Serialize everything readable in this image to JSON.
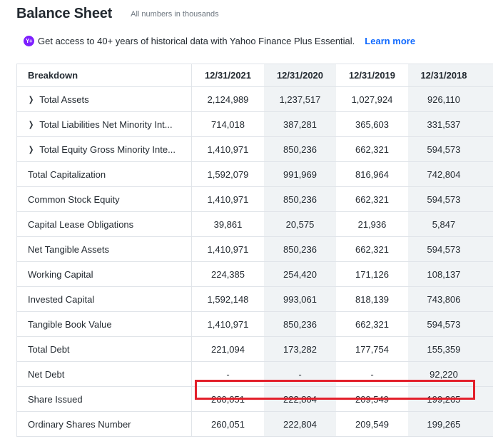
{
  "header": {
    "title": "Balance Sheet",
    "subtitle": "All numbers in thousands"
  },
  "promo": {
    "icon": "yahoo-plus-icon",
    "icon_text": "Y+",
    "text": "Get access to 40+ years of historical data with Yahoo Finance Plus Essential.",
    "link": "Learn more"
  },
  "table": {
    "columns": [
      "Breakdown",
      "12/31/2021",
      "12/31/2020",
      "12/31/2019",
      "12/31/2018"
    ],
    "rows": [
      {
        "label": "Total Assets",
        "expandable": true,
        "values": [
          "2,124,989",
          "1,237,517",
          "1,027,924",
          "926,110"
        ]
      },
      {
        "label": "Total Liabilities Net Minority Int...",
        "expandable": true,
        "values": [
          "714,018",
          "387,281",
          "365,603",
          "331,537"
        ]
      },
      {
        "label": "Total Equity Gross Minority Inte...",
        "expandable": true,
        "values": [
          "1,410,971",
          "850,236",
          "662,321",
          "594,573"
        ]
      },
      {
        "label": "Total Capitalization",
        "expandable": false,
        "values": [
          "1,592,079",
          "991,969",
          "816,964",
          "742,804"
        ]
      },
      {
        "label": "Common Stock Equity",
        "expandable": false,
        "values": [
          "1,410,971",
          "850,236",
          "662,321",
          "594,573"
        ]
      },
      {
        "label": "Capital Lease Obligations",
        "expandable": false,
        "values": [
          "39,861",
          "20,575",
          "21,936",
          "5,847"
        ]
      },
      {
        "label": "Net Tangible Assets",
        "expandable": false,
        "values": [
          "1,410,971",
          "850,236",
          "662,321",
          "594,573"
        ]
      },
      {
        "label": "Working Capital",
        "expandable": false,
        "values": [
          "224,385",
          "254,420",
          "171,126",
          "108,137"
        ]
      },
      {
        "label": "Invested Capital",
        "expandable": false,
        "values": [
          "1,592,148",
          "993,061",
          "818,139",
          "743,806"
        ]
      },
      {
        "label": "Tangible Book Value",
        "expandable": false,
        "values": [
          "1,410,971",
          "850,236",
          "662,321",
          "594,573"
        ]
      },
      {
        "label": "Total Debt",
        "expandable": false,
        "values": [
          "221,094",
          "173,282",
          "177,754",
          "155,359"
        ]
      },
      {
        "label": "Net Debt",
        "expandable": false,
        "values": [
          "-",
          "-",
          "-",
          "92,220"
        ]
      },
      {
        "label": "Share Issued",
        "expandable": false,
        "highlighted": true,
        "values": [
          "260,051",
          "222,804",
          "209,549",
          "199,265"
        ]
      },
      {
        "label": "Ordinary Shares Number",
        "expandable": false,
        "values": [
          "260,051",
          "222,804",
          "209,549",
          "199,265"
        ]
      }
    ]
  },
  "colors": {
    "highlight": "#e3202b",
    "link": "#0f69ff",
    "column_shade": "#f0f3f5",
    "badge": "#7e1fff"
  }
}
